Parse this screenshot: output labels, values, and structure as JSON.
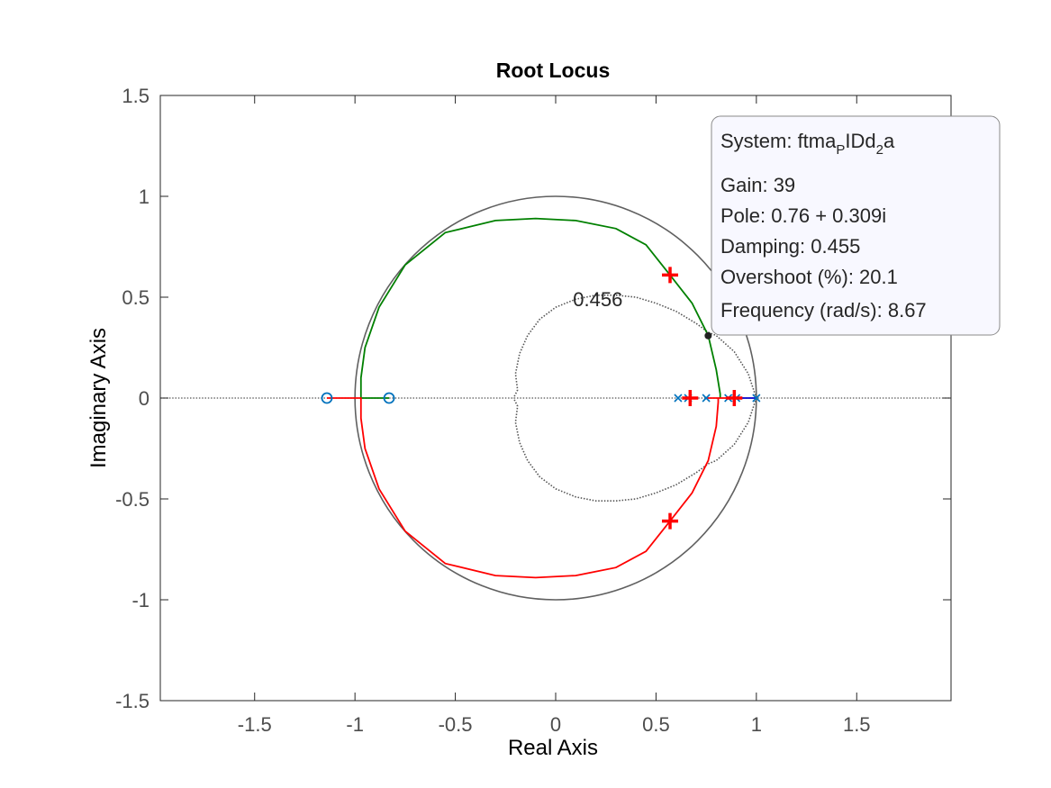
{
  "chart_data": {
    "type": "line",
    "title": "Root Locus",
    "xlabel": "Real Axis",
    "ylabel": "Imaginary Axis",
    "xlim": [
      -1.97,
      1.97
    ],
    "ylim": [
      -1.5,
      1.5
    ],
    "x_ticks": [
      -1.5,
      -1,
      -0.5,
      0,
      0.5,
      1,
      1.5
    ],
    "y_ticks": [
      -1.5,
      -1,
      -0.5,
      0,
      0.5,
      1,
      1.5
    ],
    "x_tick_labels": [
      "-1.5",
      "-1",
      "-0.5",
      "0",
      "0.5",
      "1",
      "1.5"
    ],
    "y_tick_labels": [
      "-1.5",
      "-1",
      "-0.5",
      "0",
      "0.5",
      "1",
      "1.5"
    ],
    "grid": false,
    "unit_circle": {
      "radius": 1,
      "color": "#606060"
    },
    "damping_annotation": {
      "label": "0.456",
      "x": 0.21,
      "y": 0.49
    },
    "damping_curve": [
      [
        1.0,
        0.0
      ],
      [
        0.96,
        0.12
      ],
      [
        0.89,
        0.23
      ],
      [
        0.8,
        0.31
      ],
      [
        0.76,
        0.326
      ],
      [
        0.7,
        0.37
      ],
      [
        0.6,
        0.43
      ],
      [
        0.5,
        0.47
      ],
      [
        0.4,
        0.5
      ],
      [
        0.3,
        0.51
      ],
      [
        0.2,
        0.51
      ],
      [
        0.1,
        0.49
      ],
      [
        0.0,
        0.45
      ],
      [
        -0.08,
        0.39
      ],
      [
        -0.14,
        0.31
      ],
      [
        -0.18,
        0.22
      ],
      [
        -0.2,
        0.12
      ],
      [
        -0.19,
        0.04
      ],
      [
        -0.21,
        0.0
      ]
    ],
    "series": [
      {
        "color": "#008000",
        "points": [
          [
            -0.83,
            0.0
          ],
          [
            -0.97,
            0.0
          ],
          [
            -0.97,
            0.1
          ],
          [
            -0.95,
            0.25
          ],
          [
            -0.88,
            0.45
          ],
          [
            -0.75,
            0.66
          ],
          [
            -0.55,
            0.82
          ],
          [
            -0.3,
            0.88
          ],
          [
            -0.1,
            0.89
          ],
          [
            0.1,
            0.88
          ],
          [
            0.3,
            0.84
          ],
          [
            0.45,
            0.76
          ],
          [
            0.57,
            0.61
          ],
          [
            0.68,
            0.47
          ],
          [
            0.76,
            0.31
          ],
          [
            0.8,
            0.14
          ],
          [
            0.82,
            0.02
          ],
          [
            0.82,
            0.0
          ]
        ]
      },
      {
        "color": "#ff0000",
        "points": [
          [
            -1.14,
            0.0
          ],
          [
            -0.97,
            0.0
          ],
          [
            -0.97,
            -0.1
          ],
          [
            -0.95,
            -0.25
          ],
          [
            -0.88,
            -0.45
          ],
          [
            -0.75,
            -0.66
          ],
          [
            -0.55,
            -0.82
          ],
          [
            -0.3,
            -0.88
          ],
          [
            -0.1,
            -0.89
          ],
          [
            0.1,
            -0.88
          ],
          [
            0.3,
            -0.84
          ],
          [
            0.45,
            -0.76
          ],
          [
            0.57,
            -0.61
          ],
          [
            0.68,
            -0.47
          ],
          [
            0.76,
            -0.31
          ],
          [
            0.8,
            -0.14
          ],
          [
            0.81,
            -0.02
          ],
          [
            0.81,
            0.0
          ]
        ]
      },
      {
        "color": "#0000cc",
        "points": [
          [
            0.86,
            0.0
          ],
          [
            1.0,
            0.0
          ]
        ]
      },
      {
        "color": "#ff0000",
        "points": [
          [
            0.75,
            0.0
          ],
          [
            0.86,
            0.0
          ]
        ]
      }
    ],
    "zeros": [
      [
        -1.14,
        0.0
      ],
      [
        -0.83,
        0.0
      ]
    ],
    "poles": [
      [
        0.61,
        0.0
      ],
      [
        0.66,
        0.0
      ],
      [
        0.75,
        0.0
      ],
      [
        0.86,
        0.0
      ],
      [
        0.9,
        0.0
      ],
      [
        1.0,
        0.0
      ]
    ],
    "closed_loop_poles": [
      [
        0.57,
        0.61
      ],
      [
        0.57,
        -0.61
      ],
      [
        0.67,
        0.0
      ],
      [
        0.89,
        0.0
      ]
    ],
    "datatip": {
      "point": [
        0.76,
        0.309
      ],
      "system_label": "System: ftma",
      "system_sub1": "P",
      "system_mid": "IDd",
      "system_sub2": "2",
      "system_end": "a",
      "lines": [
        "Gain: 39",
        "Pole: 0.76 + 0.309i",
        "Damping: 0.455",
        "Overshoot (%): 20.1",
        "Frequency (rad/s): 8.67"
      ]
    }
  }
}
